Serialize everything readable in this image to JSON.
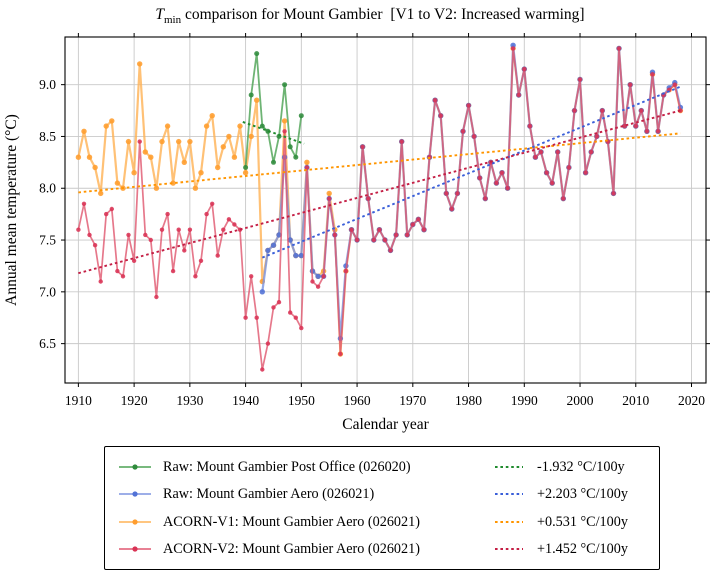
{
  "title": {
    "t": "T",
    "sub": "min",
    "rest": " comparison for Mount Gambier  [V1 to V2: Increased warming]"
  },
  "axes": {
    "xlabel": "Calendar year",
    "ylabel": "Annual mean temperature (°C)",
    "x_ticks": [
      1910,
      1920,
      1930,
      1940,
      1950,
      1960,
      1970,
      1980,
      1990,
      2000,
      2010,
      2020
    ],
    "y_ticks": [
      6.5,
      7.0,
      7.5,
      8.0,
      8.5,
      9.0
    ],
    "xlim": [
      1907.6,
      2022.6
    ],
    "ylim": [
      6.12,
      9.46
    ],
    "grid": true,
    "grid_color": "#c9c9c9"
  },
  "chart_data": {
    "type": "line",
    "x_unit": "year",
    "series": [
      {
        "key": "raw_post_office",
        "name": "Raw: Mount Gambier Post Office (026020)",
        "color_line": "#4aa151",
        "color_marker": "#2f8b3c",
        "start_year": 1940,
        "values": [
          8.2,
          8.9,
          9.3,
          8.6,
          8.55,
          8.25,
          8.5,
          9.0,
          8.4,
          8.3,
          8.7
        ]
      },
      {
        "key": "raw_aero",
        "name": "Raw: Mount Gambier Aero (026021)",
        "color_line": "#7b93e0",
        "color_marker": "#5272d6",
        "start_year": 1943,
        "values": [
          7.0,
          7.4,
          7.45,
          7.55,
          8.3,
          7.5,
          7.35,
          7.35,
          8.2,
          7.2,
          7.15,
          7.15,
          7.9,
          7.55,
          6.55,
          7.25,
          7.6,
          7.5,
          8.4,
          7.9,
          7.5,
          7.6,
          7.5,
          7.4,
          7.55,
          8.45,
          7.55,
          7.65,
          7.7,
          7.6,
          8.3,
          8.85,
          8.7,
          7.95,
          7.8,
          7.95,
          8.55,
          8.8,
          8.5,
          8.1,
          7.9,
          8.25,
          8.05,
          8.15,
          8.0,
          9.38,
          8.9,
          9.15,
          8.6,
          8.3,
          8.35,
          8.15,
          8.05,
          8.35,
          7.9,
          8.2,
          8.75,
          9.05,
          8.15,
          8.35,
          8.5,
          8.75,
          8.45,
          7.95,
          9.35,
          8.6,
          9.0,
          8.6,
          8.75,
          8.55,
          9.12,
          8.55,
          8.9,
          8.97,
          9.02,
          8.78
        ]
      },
      {
        "key": "acorn_v1",
        "name": "ACORN-V1: Mount Gambier Aero (026021)",
        "color_line": "#ffb154",
        "color_marker": "#ff9d2e",
        "start_year": 1910,
        "values": [
          8.3,
          8.55,
          8.3,
          8.2,
          7.95,
          8.6,
          8.65,
          8.05,
          8.0,
          8.45,
          8.15,
          9.2,
          8.35,
          8.3,
          8.0,
          8.45,
          8.6,
          8.05,
          8.45,
          8.25,
          8.45,
          8.0,
          8.15,
          8.6,
          8.7,
          8.2,
          8.4,
          8.5,
          8.3,
          8.6,
          8.15,
          8.5,
          8.85,
          7.1,
          7.4,
          7.45,
          7.55,
          8.65,
          7.5,
          7.35,
          7.35,
          8.25,
          7.2,
          7.15,
          7.2,
          7.95,
          7.6,
          6.4,
          7.2,
          7.6,
          7.5,
          8.4,
          7.9,
          7.5,
          7.6,
          7.5,
          7.4,
          7.55,
          8.45,
          7.55,
          7.65,
          7.7,
          7.6,
          8.3,
          8.85,
          8.7,
          7.95,
          7.8,
          7.95,
          8.55,
          8.8,
          8.5,
          8.1,
          7.9,
          8.25,
          8.05,
          8.15,
          8.0,
          9.35,
          8.9,
          9.15,
          8.6,
          8.3,
          8.35,
          8.15,
          8.05,
          8.35,
          7.9,
          8.2,
          8.75,
          9.05,
          8.15,
          8.35,
          8.5,
          8.75,
          8.45,
          7.95,
          9.35,
          8.6,
          9.0,
          8.6,
          8.75,
          8.55,
          9.1,
          8.55,
          8.9,
          8.95,
          9.0,
          8.75
        ]
      },
      {
        "key": "acorn_v2",
        "name": "ACORN-V2: Mount Gambier Aero (026021)",
        "color_line": "#e0566e",
        "color_marker": "#d93355",
        "start_year": 1910,
        "values": [
          7.6,
          7.85,
          7.55,
          7.45,
          7.1,
          7.75,
          7.8,
          7.2,
          7.15,
          7.55,
          7.3,
          8.45,
          7.55,
          7.5,
          6.95,
          7.6,
          7.75,
          7.2,
          7.6,
          7.4,
          7.6,
          7.15,
          7.3,
          7.75,
          7.85,
          7.35,
          7.6,
          7.7,
          7.65,
          7.6,
          6.75,
          7.15,
          6.75,
          6.25,
          6.5,
          6.85,
          6.9,
          8.55,
          6.8,
          6.75,
          6.65,
          8.2,
          7.1,
          7.05,
          7.15,
          7.9,
          7.55,
          6.4,
          7.2,
          7.6,
          7.5,
          8.4,
          7.9,
          7.5,
          7.6,
          7.5,
          7.4,
          7.55,
          8.45,
          7.55,
          7.65,
          7.7,
          7.6,
          8.3,
          8.85,
          8.7,
          7.95,
          7.8,
          7.95,
          8.55,
          8.8,
          8.5,
          8.1,
          7.9,
          8.25,
          8.05,
          8.15,
          8.0,
          9.35,
          8.9,
          9.15,
          8.6,
          8.3,
          8.35,
          8.15,
          8.05,
          8.35,
          7.9,
          8.2,
          8.75,
          9.05,
          8.15,
          8.35,
          8.5,
          8.75,
          8.45,
          7.95,
          9.35,
          8.6,
          9.0,
          8.6,
          8.75,
          8.55,
          9.1,
          8.55,
          8.9,
          8.95,
          9.0,
          8.75
        ]
      }
    ],
    "trends": [
      {
        "series": "raw_post_office",
        "label": "-1.932 °C/100y",
        "color": "#208b2e",
        "x": [
          1939.5,
          1950.5
        ],
        "y": [
          8.64,
          8.43
        ]
      },
      {
        "series": "raw_aero",
        "label": "+2.203 °C/100y",
        "color": "#3a5fd9",
        "x": [
          1943,
          2018
        ],
        "y": [
          7.33,
          8.98
        ]
      },
      {
        "series": "acorn_v1",
        "label": "+0.531 °C/100y",
        "color": "#ff9500",
        "x": [
          1910,
          2018
        ],
        "y": [
          7.96,
          8.53
        ]
      },
      {
        "series": "acorn_v2",
        "label": "+1.452 °C/100y",
        "color": "#c41f45",
        "x": [
          1910,
          2018
        ],
        "y": [
          7.18,
          8.75
        ]
      }
    ]
  }
}
